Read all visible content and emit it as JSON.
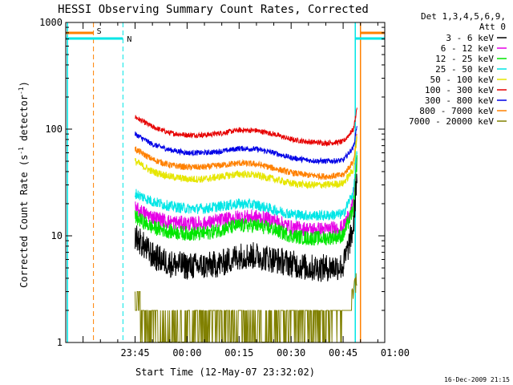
{
  "chart_data": {
    "type": "line",
    "title": "HESSI Observing Summary Count Rates, Corrected",
    "xlabel": "Start Time (12-May-07 23:32:02)",
    "ylabel": "Corrected Count Rate (s",
    "ylabel_sup1": "-1",
    "ylabel_mid": " detector",
    "ylabel_sup2": "-1",
    "ylabel_end": ")",
    "yscale": "log",
    "ylim": [
      1,
      1000
    ],
    "xlim_minutes": [
      -20,
      72
    ],
    "x_tick_labels": [
      {
        "label": "23:45",
        "t": 0
      },
      {
        "label": "00:00",
        "t": 15
      },
      {
        "label": "00:15",
        "t": 30
      },
      {
        "label": "00:30",
        "t": 45
      },
      {
        "label": "00:45",
        "t": 60
      },
      {
        "label": "01:00",
        "t": 75
      }
    ],
    "y_tick_labels": [
      {
        "label": "1",
        "v": 1
      },
      {
        "label": "10",
        "v": 10
      },
      {
        "label": "100",
        "v": 100
      },
      {
        "label": "1000",
        "v": 1000
      }
    ],
    "legend_header": [
      "Det 1,3,4,5,6,9,",
      "Att 0"
    ],
    "legend_placement": "right",
    "timestamp": "16-Dec-2009 21:15",
    "markers": [
      {
        "label": "S",
        "color": "#ff8000"
      },
      {
        "label": "N",
        "color": "#00e6e6"
      }
    ],
    "series": [
      {
        "name": "3 - 6 keV",
        "color": "#000000",
        "t": [
          0,
          5,
          10,
          15,
          20,
          25,
          30,
          35,
          40,
          45,
          50,
          55,
          60,
          63,
          64
        ],
        "values": [
          10,
          6.5,
          5.5,
          5.2,
          5.2,
          5.5,
          6.5,
          6.5,
          6,
          5.5,
          5,
          5,
          5.2,
          12,
          40
        ],
        "noise": 0.13
      },
      {
        "name": "6 - 12 keV",
        "color": "#e600e6",
        "t": [
          0,
          5,
          10,
          15,
          20,
          25,
          30,
          35,
          40,
          45,
          50,
          55,
          60,
          63,
          64
        ],
        "values": [
          18,
          15,
          13.5,
          13,
          13,
          14,
          15,
          15,
          14,
          12,
          11.5,
          11.5,
          12,
          20,
          55
        ],
        "noise": 0.07
      },
      {
        "name": "12 - 25 keV",
        "color": "#00e600",
        "t": [
          0,
          5,
          10,
          15,
          20,
          25,
          30,
          35,
          40,
          45,
          50,
          55,
          60,
          63,
          64
        ],
        "values": [
          15,
          12,
          11,
          10.5,
          10.5,
          11.5,
          12.5,
          12.5,
          11.5,
          10,
          9.5,
          9.5,
          10,
          18,
          50
        ],
        "noise": 0.07
      },
      {
        "name": "25 - 50 keV",
        "color": "#00e6e6",
        "t": [
          0,
          5,
          10,
          15,
          20,
          25,
          30,
          35,
          40,
          45,
          50,
          55,
          60,
          63,
          64
        ],
        "values": [
          25,
          21,
          19,
          18,
          18,
          19,
          20,
          19.5,
          17.5,
          16,
          15.5,
          15.5,
          16,
          26,
          60
        ],
        "noise": 0.05
      },
      {
        "name": "50 - 100 keV",
        "color": "#e6e600",
        "t": [
          0,
          5,
          10,
          15,
          20,
          25,
          30,
          35,
          40,
          45,
          50,
          55,
          60,
          63,
          64
        ],
        "values": [
          50,
          40,
          36,
          34,
          34,
          36,
          38,
          37,
          34,
          31,
          30,
          30,
          31,
          42,
          80
        ],
        "noise": 0.035
      },
      {
        "name": "100 - 300 keV",
        "color": "#e60000",
        "t": [
          0,
          5,
          10,
          15,
          20,
          25,
          30,
          35,
          40,
          45,
          50,
          55,
          60,
          63,
          64
        ],
        "values": [
          130,
          105,
          92,
          88,
          88,
          92,
          98,
          97,
          90,
          80,
          76,
          74,
          76,
          100,
          160
        ],
        "noise": 0.025
      },
      {
        "name": "300 - 800 keV",
        "color": "#0000e6",
        "t": [
          0,
          5,
          10,
          15,
          20,
          25,
          30,
          35,
          40,
          45,
          50,
          55,
          60,
          63,
          64
        ],
        "values": [
          90,
          72,
          64,
          60,
          60,
          62,
          66,
          65,
          60,
          54,
          51,
          50,
          51,
          68,
          110
        ],
        "noise": 0.025
      },
      {
        "name": "800 - 7000 keV",
        "color": "#ff8000",
        "t": [
          0,
          5,
          10,
          15,
          20,
          25,
          30,
          35,
          40,
          45,
          50,
          55,
          60,
          63,
          64
        ],
        "values": [
          65,
          52,
          46,
          44,
          44,
          46,
          48,
          47,
          43,
          39,
          37,
          36,
          37,
          50,
          90
        ],
        "noise": 0.03
      },
      {
        "name": "7000 - 20000 keV",
        "color": "#808000",
        "t": [
          0,
          1,
          1.5,
          4,
          10,
          15,
          20,
          25,
          30,
          35,
          40,
          45,
          50,
          55,
          60,
          62,
          64
        ],
        "values": [
          2.9,
          2.4,
          1.8,
          1.6,
          1.3,
          1.4,
          1.5,
          1.7,
          1.6,
          1.5,
          1.4,
          1.5,
          1.6,
          1.7,
          1.9,
          2.4,
          4
        ],
        "noise": 0,
        "discrete": true
      }
    ]
  }
}
